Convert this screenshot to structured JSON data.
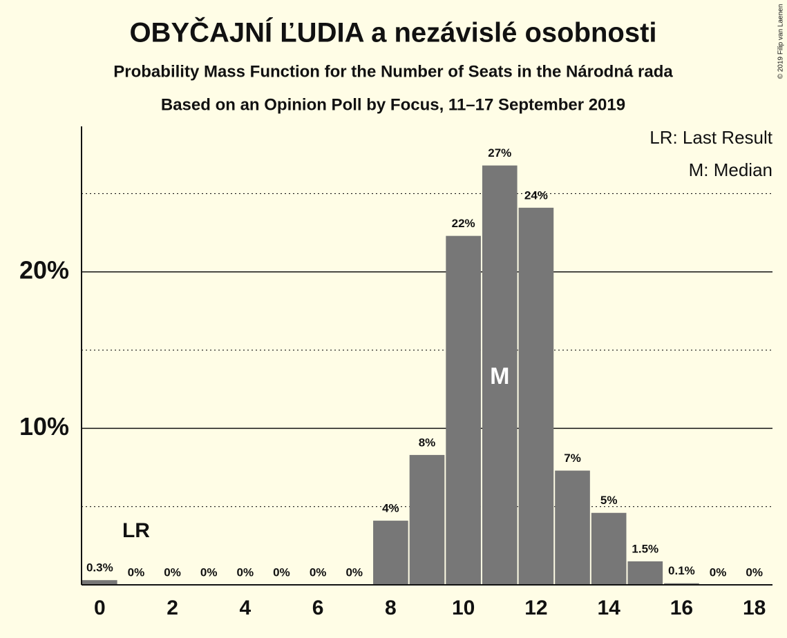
{
  "chart_data": {
    "type": "bar",
    "title": "OBYČAJNÍ ĽUDIA a nezávislé osobnosti",
    "subtitle": "Probability Mass Function for the Number of Seats in the Národná rada",
    "subtitle2": "Based on an Opinion Poll by Focus, 11–17 September 2019",
    "copyright": "© 2019 Filip van Laenen",
    "legend": [
      "LR: Last Result",
      "M: Median"
    ],
    "categories": [
      0,
      null,
      2,
      null,
      4,
      null,
      6,
      null,
      8,
      null,
      10,
      null,
      12,
      null,
      14,
      null,
      16,
      null,
      18
    ],
    "values": [
      0.3,
      0,
      0,
      0,
      0,
      0,
      0,
      0,
      4.1,
      8.3,
      22.3,
      26.8,
      24.1,
      7.3,
      4.6,
      1.5,
      0.1,
      0,
      0
    ],
    "value_labels": [
      "0.3%",
      "0%",
      "0%",
      "0%",
      "0%",
      "0%",
      "0%",
      "0%",
      "4%",
      "8%",
      "22%",
      "27%",
      "24%",
      "7%",
      "5%",
      "1.5%",
      "0.1%",
      "0%",
      "0%"
    ],
    "color": "#777777",
    "ylim": [
      0,
      29.3
    ],
    "yticks": [
      {
        "value": 10,
        "label": "10%"
      },
      {
        "value": 20,
        "label": "20%"
      }
    ],
    "minor_gridlines": [
      5,
      15,
      25
    ],
    "last_result": {
      "index": 1,
      "label": "LR"
    },
    "median": {
      "index": 11,
      "label": "M"
    }
  }
}
